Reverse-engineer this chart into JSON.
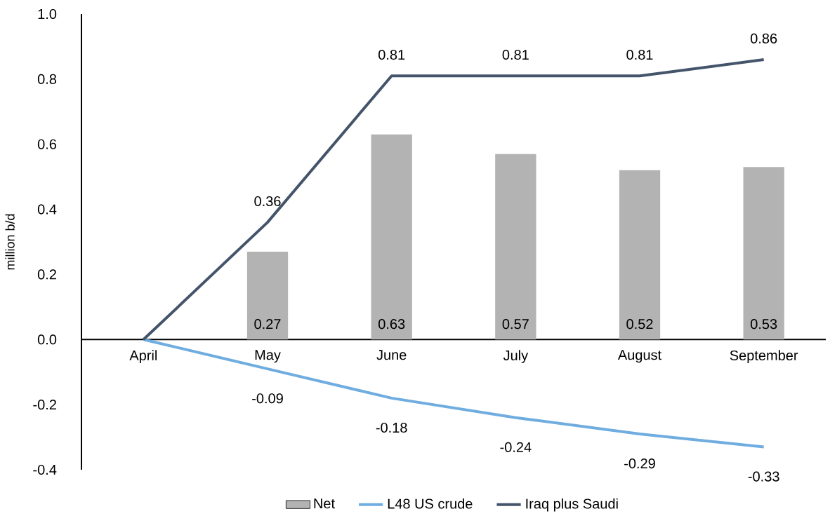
{
  "chart_data": {
    "type": "bar",
    "ylabel": "million b/d",
    "categories": [
      "April",
      "May",
      "June",
      "July",
      "August",
      "September"
    ],
    "series": [
      {
        "name": "Net",
        "color": "#b3b3b3",
        "values": [
          null,
          0.27,
          0.63,
          0.57,
          0.52,
          0.53
        ],
        "value_labels": [
          null,
          "0.27",
          "0.63",
          "0.57",
          "0.52",
          "0.53"
        ]
      },
      {
        "name": "L48 US crude",
        "type": "line",
        "color": "#6fade0",
        "values": [
          0,
          -0.09,
          -0.18,
          -0.24,
          -0.29,
          -0.33
        ],
        "value_labels": [
          null,
          "-0.09",
          "-0.18",
          "-0.24",
          "-0.29",
          "-0.33"
        ]
      },
      {
        "name": "Iraq plus Saudi",
        "type": "line",
        "color": "#44546a",
        "values": [
          0,
          0.36,
          0.81,
          0.81,
          0.81,
          0.86
        ],
        "value_labels": [
          null,
          "0.36",
          "0.81",
          "0.81",
          "0.81",
          "0.86"
        ]
      }
    ],
    "ylim": [
      -0.4,
      1.0
    ],
    "yticks": [
      {
        "value": -0.4,
        "label": "-0.4"
      },
      {
        "value": -0.2,
        "label": "-0.2"
      },
      {
        "value": 0,
        "label": "0.0"
      },
      {
        "value": 0.2,
        "label": "0.2"
      },
      {
        "value": 0.4,
        "label": "0.4"
      },
      {
        "value": 0.6,
        "label": "0.6"
      },
      {
        "value": 0.8,
        "label": "0.8"
      },
      {
        "value": 1.0,
        "label": "1.0"
      }
    ],
    "legend": "bottom"
  }
}
